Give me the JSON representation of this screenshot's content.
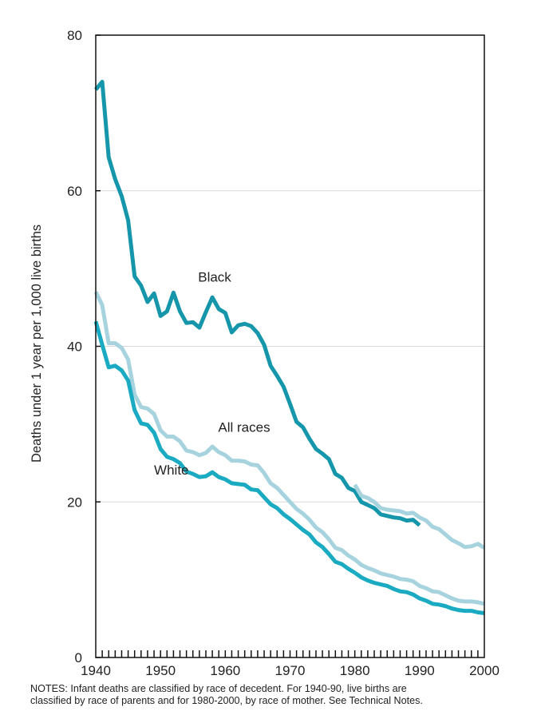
{
  "chart_data": {
    "type": "line",
    "title": "",
    "xlabel": "",
    "ylabel": "Deaths under 1 year per 1,000 live births",
    "xlim": [
      1940,
      2000
    ],
    "ylim": [
      0,
      80
    ],
    "xticks": [
      1940,
      1950,
      1960,
      1970,
      1980,
      1990,
      2000
    ],
    "yticks": [
      0,
      20,
      40,
      60,
      80
    ],
    "grid": "horizontal",
    "series": [
      {
        "name": "Black",
        "color": "#1696ab",
        "x": [
          1940,
          1941,
          1942,
          1943,
          1944,
          1945,
          1946,
          1947,
          1948,
          1949,
          1950,
          1951,
          1952,
          1953,
          1954,
          1955,
          1956,
          1957,
          1958,
          1959,
          1960,
          1961,
          1962,
          1963,
          1964,
          1965,
          1966,
          1967,
          1968,
          1969,
          1970,
          1971,
          1972,
          1973,
          1974,
          1975,
          1976,
          1977,
          1978,
          1979,
          1980,
          1981,
          1982,
          1983,
          1984,
          1985,
          1986,
          1987,
          1988,
          1989,
          1990
        ],
        "values": [
          73.0,
          74.0,
          64.3,
          61.5,
          59.3,
          56.2,
          49.0,
          47.8,
          45.7,
          46.8,
          43.9,
          44.5,
          46.9,
          44.5,
          43.0,
          43.1,
          42.4,
          44.4,
          46.3,
          44.8,
          44.3,
          41.8,
          42.7,
          42.9,
          42.6,
          41.7,
          40.2,
          37.5,
          36.2,
          34.8,
          32.6,
          30.3,
          29.6,
          28.1,
          26.8,
          26.2,
          25.5,
          23.6,
          23.1,
          21.8,
          21.4,
          20.0,
          19.6,
          19.2,
          18.4,
          18.2,
          18.0,
          17.9,
          17.6,
          17.7,
          17.0
        ]
      },
      {
        "name": "All races",
        "color": "#a7d3df",
        "x": [
          1940,
          1941,
          1942,
          1943,
          1944,
          1945,
          1946,
          1947,
          1948,
          1949,
          1950,
          1951,
          1952,
          1953,
          1954,
          1955,
          1956,
          1957,
          1958,
          1959,
          1960,
          1961,
          1962,
          1963,
          1964,
          1965,
          1966,
          1967,
          1968,
          1969,
          1970,
          1971,
          1972,
          1973,
          1974,
          1975,
          1976,
          1977,
          1978,
          1979,
          1980,
          1981,
          1982,
          1983,
          1984,
          1985,
          1986,
          1987,
          1988,
          1989,
          1990,
          1991,
          1992,
          1993,
          1994,
          1995,
          1996,
          1997,
          1998,
          1999,
          2000
        ],
        "values": [
          47.0,
          45.3,
          40.4,
          40.4,
          39.8,
          38.3,
          33.8,
          32.2,
          32.0,
          31.3,
          29.2,
          28.4,
          28.4,
          27.8,
          26.6,
          26.4,
          26.0,
          26.3,
          27.1,
          26.4,
          26.0,
          25.3,
          25.3,
          25.2,
          24.8,
          24.7,
          23.7,
          22.4,
          21.8,
          20.9,
          20.0,
          19.1,
          18.5,
          17.7,
          16.7,
          16.1,
          15.2,
          14.1,
          13.8,
          13.1,
          12.6,
          11.9,
          11.5,
          11.2,
          10.8,
          10.6,
          10.4,
          10.1,
          10.0,
          9.8,
          9.2,
          8.9,
          8.5,
          8.4,
          8.0,
          7.6,
          7.3,
          7.2,
          7.2,
          7.1,
          6.9
        ]
      },
      {
        "name": "White",
        "color": "#1aabc3",
        "x": [
          1940,
          1941,
          1942,
          1943,
          1944,
          1945,
          1946,
          1947,
          1948,
          1949,
          1950,
          1951,
          1952,
          1953,
          1954,
          1955,
          1956,
          1957,
          1958,
          1959,
          1960,
          1961,
          1962,
          1963,
          1964,
          1965,
          1966,
          1967,
          1968,
          1969,
          1970,
          1971,
          1972,
          1973,
          1974,
          1975,
          1976,
          1977,
          1978,
          1979,
          1980
        ],
        "values": [
          43.2,
          40.2,
          37.3,
          37.5,
          36.9,
          35.6,
          31.8,
          30.1,
          29.9,
          28.9,
          26.8,
          25.8,
          25.5,
          25.0,
          23.9,
          23.6,
          23.2,
          23.3,
          23.8,
          23.2,
          22.9,
          22.4,
          22.3,
          22.2,
          21.6,
          21.5,
          20.6,
          19.7,
          19.2,
          18.4,
          17.8,
          17.1,
          16.4,
          15.8,
          14.8,
          14.2,
          13.3,
          12.3,
          12.0,
          11.4,
          10.9
        ]
      },
      {
        "name": "",
        "color": "#a7d3df",
        "x": [
          1980,
          1981,
          1982,
          1983,
          1984,
          1985,
          1986,
          1987,
          1988,
          1989,
          1990,
          1991,
          1992,
          1993,
          1994,
          1995,
          1996,
          1997,
          1998,
          1999,
          2000
        ],
        "values": [
          22.2,
          20.8,
          20.5,
          20.0,
          19.2,
          19.0,
          18.9,
          18.8,
          18.5,
          18.6,
          18.0,
          17.6,
          16.8,
          16.5,
          15.8,
          15.1,
          14.7,
          14.2,
          14.3,
          14.6,
          14.1
        ]
      },
      {
        "name": "",
        "color": "#1aabc3",
        "x": [
          1980,
          1981,
          1982,
          1983,
          1984,
          1985,
          1986,
          1987,
          1988,
          1989,
          1990,
          1991,
          1992,
          1993,
          1994,
          1995,
          1996,
          1997,
          1998,
          1999,
          2000
        ],
        "values": [
          10.9,
          10.3,
          9.9,
          9.6,
          9.4,
          9.2,
          8.8,
          8.5,
          8.4,
          8.1,
          7.6,
          7.3,
          6.9,
          6.8,
          6.6,
          6.3,
          6.1,
          6.0,
          6.0,
          5.8,
          5.7
        ]
      }
    ],
    "labels": [
      {
        "text": "Black",
        "x": 1955.8,
        "y": 48.3
      },
      {
        "text": "All races",
        "x": 1958.9,
        "y": 29.0
      },
      {
        "text": "White",
        "x": 1949.0,
        "y": 23.5
      }
    ]
  },
  "notes": {
    "line1": "NOTES: Infant deaths are classified by race of decedent.  For 1940-90, live births are",
    "line2": "classified by race of parents and for 1980-2000, by race of mother. See Technical Notes."
  }
}
